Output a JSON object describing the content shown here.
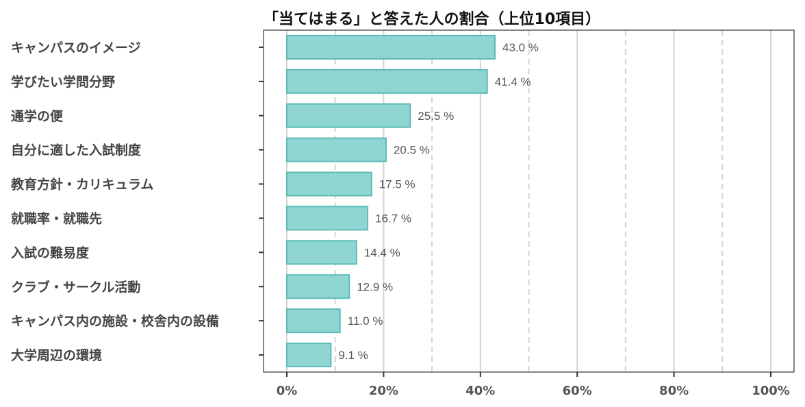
{
  "chart_data": {
    "type": "bar",
    "orientation": "horizontal",
    "title": "「当てはまる」と答えた人の割合（上位10項目）",
    "categories": [
      "キャンパスのイメージ",
      "学びたい学問分野",
      "通学の便",
      "自分に適した入試制度",
      "教育方針・カリキュラム",
      "就職率・就職先",
      "入試の難易度",
      "クラブ・サークル活動",
      "キャンパス内の施設・校舎内の設備",
      "大学周辺の環境"
    ],
    "values": [
      43.0,
      41.4,
      25.5,
      20.5,
      17.5,
      16.7,
      14.4,
      12.9,
      11.0,
      9.1
    ],
    "value_labels": [
      "43.0 %",
      "41.4 %",
      "25.5 %",
      "20.5 %",
      "17.5 %",
      "16.7 %",
      "14.4 %",
      "12.9 %",
      "11.0 %",
      "9.1 %"
    ],
    "x_ticks": [
      0,
      20,
      40,
      60,
      80,
      100
    ],
    "x_tick_labels": [
      "0%",
      "20%",
      "40%",
      "60%",
      "80%",
      "100%"
    ],
    "x_minor_dashed": [
      10,
      30,
      50,
      70,
      90
    ],
    "xlim": [
      0,
      100
    ],
    "grid": true,
    "colors": {
      "bar_fill": "#8fd5d2",
      "bar_stroke": "#5bbcb6",
      "grid_major": "#d3d3d3",
      "grid_minor": "#d3d3d3",
      "panel_border": "#333333"
    }
  }
}
